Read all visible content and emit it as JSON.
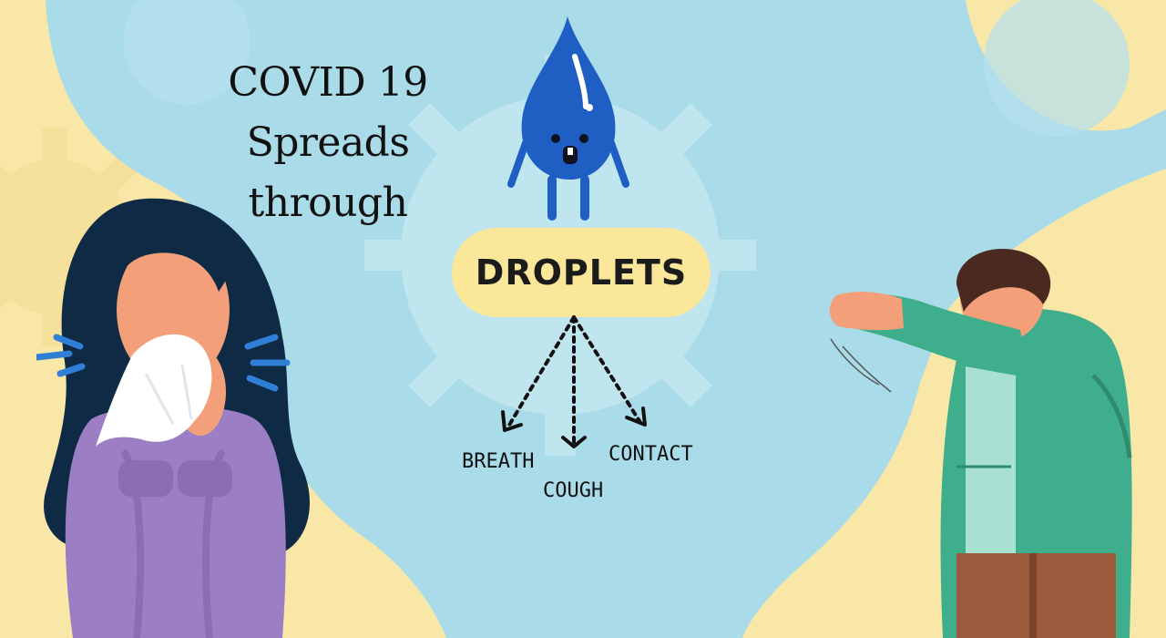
{
  "title": {
    "line1": "COVID 19 Spreads",
    "line2": "through"
  },
  "center_label": "DROPLETS",
  "routes": [
    "BREATH",
    "COUGH",
    "CONTACT"
  ],
  "colors": {
    "background_yellow": "#f9e7a8",
    "sky_blue": "#a9dbe8",
    "virus_blue": "#bfe5ef",
    "pill_yellow": "#fbe79a",
    "drop_blue": "#1f5fc4"
  }
}
